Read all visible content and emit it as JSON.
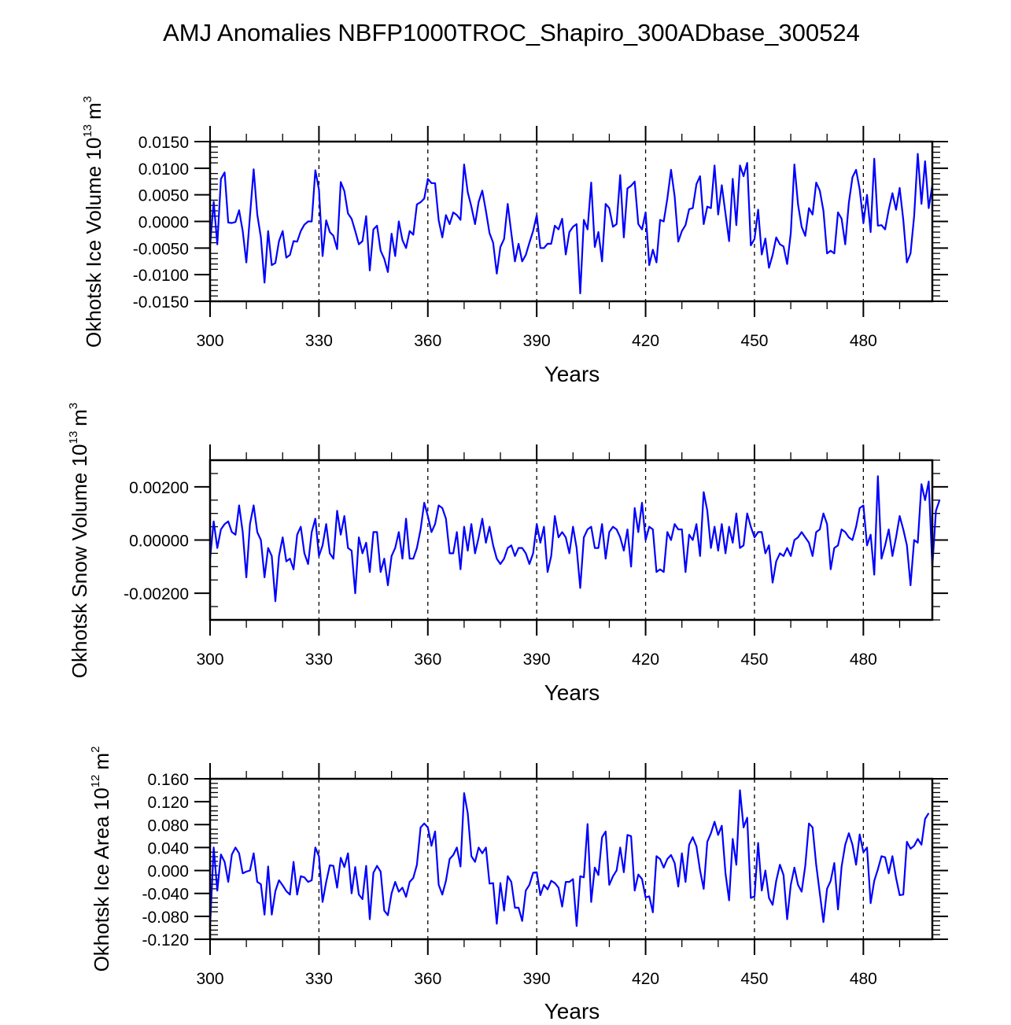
{
  "figure_title": "AMJ Anomalies NBFP1000TROC_Shapiro_300ADbase_300524",
  "chart_data": [
    {
      "type": "line",
      "title": "AMJ Anomalies NBFP1000TROC_Shapiro_300ADbase_300524",
      "ylabel": "Okhotsk Ice Volume 10^13 m^3",
      "ylabel_main": "Okhotsk Ice Volume 10",
      "ylabel_exp": "13",
      "ylabel_unit": "m",
      "ylabel_unit_exp": "3",
      "xlabel": "Years",
      "xlim": [
        300,
        499
      ],
      "ylim": [
        -0.015,
        0.015
      ],
      "xticks": [
        300,
        330,
        360,
        390,
        420,
        450,
        480
      ],
      "xtick_labels": [
        "300",
        "330",
        "360",
        "390",
        "420",
        "450",
        "480"
      ],
      "yticks": [
        0.015,
        0.01,
        0.005,
        0.0,
        -0.005,
        -0.01,
        -0.015
      ],
      "ytick_labels": [
        "0.0150",
        "0.0100",
        "0.0050",
        "0.0000",
        "-0.0050",
        "-0.0100",
        "-0.0150"
      ],
      "ytick_minor_step": 0.001,
      "grid": "dashed vertical at major x ticks",
      "line_color": "#0000ff",
      "x_start": 300,
      "values": [
        -0.0045,
        0.0037,
        -0.0043,
        0.008,
        0.0092,
        -0.0002,
        -0.0003,
        -0.0001,
        0.0021,
        -0.0018,
        -0.0077,
        0.001,
        0.0098,
        0.0013,
        -0.003,
        -0.0115,
        -0.0018,
        -0.0082,
        -0.0078,
        -0.0037,
        -0.0018,
        -0.0068,
        -0.0063,
        -0.0037,
        -0.0038,
        -0.0018,
        -0.0006,
        0.0,
        0.0,
        0.0096,
        0.006,
        -0.0065,
        0.0002,
        -0.002,
        -0.0027,
        -0.0052,
        0.0074,
        0.0057,
        0.0015,
        0.0005,
        -0.0018,
        -0.0043,
        -0.0037,
        0.001,
        -0.0092,
        -0.0015,
        -0.0008,
        -0.0055,
        -0.007,
        -0.0095,
        -0.0023,
        -0.0065,
        0.0,
        -0.0035,
        -0.005,
        -0.0018,
        -0.0025,
        0.0032,
        0.0036,
        0.0043,
        0.008,
        0.0072,
        0.0072,
        0.0002,
        -0.003,
        0.0012,
        -0.0005,
        0.0017,
        0.0012,
        0.0003,
        0.0107,
        0.0055,
        0.0028,
        -0.0005,
        0.0037,
        0.0058,
        0.002,
        -0.0022,
        -0.004,
        -0.0098,
        -0.0048,
        -0.0033,
        0.0033,
        -0.0022,
        -0.0075,
        -0.0042,
        -0.0075,
        -0.0063,
        -0.004,
        -0.0018,
        0.0012,
        -0.005,
        -0.005,
        -0.0042,
        -0.0042,
        -0.0008,
        -0.0015,
        0.0005,
        -0.0062,
        -0.002,
        -0.001,
        -0.0005,
        -0.0135,
        0.0003,
        -0.0015,
        0.0073,
        -0.0048,
        -0.002,
        -0.0075,
        0.0033,
        0.0025,
        -0.001,
        -0.0005,
        0.0087,
        -0.003,
        0.0062,
        0.0067,
        0.0075,
        -0.0005,
        -0.0015,
        0.0017,
        -0.0082,
        -0.0053,
        -0.0077,
        0.0003,
        0.0,
        0.0043,
        0.0097,
        0.0047,
        -0.0038,
        -0.0018,
        -0.0007,
        0.0023,
        0.0025,
        0.007,
        0.0085,
        -0.0005,
        0.0028,
        0.0025,
        0.0105,
        0.0013,
        0.0068,
        0.0015,
        -0.0037,
        0.008,
        -0.0007,
        0.0105,
        0.0085,
        0.011,
        -0.0045,
        -0.0033,
        0.0022,
        -0.0062,
        -0.0032,
        -0.0087,
        -0.0063,
        -0.003,
        -0.0043,
        -0.0047,
        -0.008,
        -0.0022,
        0.0107,
        0.0032,
        -0.001,
        -0.0027,
        0.0025,
        0.0013,
        0.0073,
        0.0058,
        0.002,
        -0.006,
        -0.0055,
        -0.006,
        0.0017,
        0.0005,
        -0.0043,
        0.0035,
        0.0083,
        0.0097,
        0.006,
        -0.0003,
        0.005,
        -0.002,
        0.0118,
        -0.0008,
        -0.0007,
        -0.0015,
        0.0022,
        0.0053,
        0.0022,
        0.0063,
        0.0003,
        -0.0077,
        -0.006,
        0.001,
        0.0127,
        0.0033,
        0.0113,
        0.0025,
        0.0068
      ]
    },
    {
      "type": "line",
      "ylabel": "Okhotsk Snow Volume 10^13 m^3",
      "ylabel_main": "Okhotsk Snow Volume 10",
      "ylabel_exp": "13",
      "ylabel_unit": "m",
      "ylabel_unit_exp": "3",
      "xlabel": "Years",
      "xlim": [
        300,
        499
      ],
      "ylim": [
        -0.003,
        0.003
      ],
      "xticks": [
        300,
        330,
        360,
        390,
        420,
        450,
        480
      ],
      "xtick_labels": [
        "300",
        "330",
        "360",
        "390",
        "420",
        "450",
        "480"
      ],
      "yticks": [
        0.002,
        0.0,
        -0.002
      ],
      "ytick_labels": [
        "0.00200",
        "0.00000",
        "-0.00200"
      ],
      "ytick_minor_step": 0.0005,
      "grid": "dashed vertical at major x ticks",
      "line_color": "#0000ff",
      "x_start": 300,
      "values": [
        -0.0007,
        0.0007,
        -0.0003,
        0.0004,
        0.0006,
        0.0007,
        0.0003,
        0.0002,
        0.0013,
        0.0003,
        -0.0014,
        0.0006,
        0.0013,
        0.0003,
        -0.0,
        -0.0014,
        -0.0003,
        -0.0006,
        -0.0023,
        -0.0006,
        0.0001,
        -0.0008,
        -0.0007,
        -0.0011,
        0.0002,
        0.0005,
        -0.0005,
        -0.0009,
        0.0003,
        0.0008,
        -0.0006,
        -0.0002,
        0.0006,
        -0.0005,
        -0.0007,
        0.0011,
        0.0002,
        0.0009,
        -0.0003,
        -0.0004,
        -0.002,
        0.0001,
        -0.0005,
        -0.0001,
        -0.0012,
        0.0003,
        0.0003,
        -0.0012,
        -0.0007,
        -0.0017,
        -0.0006,
        -0.0003,
        0.0003,
        -0.0007,
        0.0008,
        -0.0007,
        -0.0007,
        -0.0003,
        0.0004,
        0.0014,
        0.0009,
        0.0003,
        0.0006,
        0.0013,
        0.0012,
        0.0008,
        -0.0005,
        -0.0005,
        0.0003,
        -0.0011,
        0.0005,
        -0.0004,
        0.0006,
        -0.0005,
        0.0001,
        0.0008,
        -0.0001,
        0.0005,
        -0.0002,
        -0.0007,
        -0.0009,
        -0.0007,
        -0.0003,
        -0.0002,
        -0.0006,
        -0.0003,
        -0.0003,
        -0.0005,
        -0.0009,
        -0.0005,
        0.0006,
        -0.0001,
        0.0005,
        -0.0012,
        -0.0006,
        0.0009,
        0.0001,
        0.0003,
        0.0001,
        -0.0005,
        0.0005,
        -0.0003,
        -0.0018,
        0.0001,
        0.0004,
        0.0005,
        -0.0003,
        -0.0003,
        0.0006,
        -0.0007,
        0.0003,
        0.0005,
        0.0004,
        0.0001,
        -0.0004,
        0.0004,
        -0.001,
        0.0012,
        0.0003,
        0.0014,
        0.0,
        0.0005,
        0.0004,
        -0.0012,
        -0.0011,
        -0.0012,
        0.0003,
        0.0,
        0.0006,
        0.0004,
        0.0004,
        -0.0012,
        0.0002,
        0.0,
        0.0006,
        -0.0006,
        0.0018,
        0.0011,
        -0.0003,
        0.0005,
        -0.0004,
        0.0006,
        -0.0005,
        0.0005,
        -0.0001,
        0.001,
        -0.0003,
        -0.0002,
        0.001,
        0.0005,
        0.0001,
        0.0003,
        0.0003,
        -0.0005,
        -0.0002,
        -0.0016,
        -0.0008,
        -0.0005,
        -0.0006,
        -0.0003,
        -0.0006,
        0.0,
        0.0001,
        0.0003,
        0.0001,
        -0.0001,
        -0.0006,
        0.0003,
        0.0004,
        0.001,
        0.0006,
        -0.0011,
        -0.0003,
        -0.0002,
        0.0004,
        0.0003,
        0.0001,
        0.0,
        0.0005,
        0.0012,
        0.0013,
        -0.0002,
        0.0002,
        -0.0013,
        0.0024,
        -0.0007,
        -0.0002,
        0.0004,
        -0.0006,
        0.0001,
        0.0009,
        0.0004,
        -0.0002,
        -0.0017,
        0.0,
        -0.0001,
        0.0021,
        0.0015,
        0.0022,
        -0.001,
        0.0011,
        0.0015
      ]
    },
    {
      "type": "line",
      "ylabel": "Okhotsk Ice Area 10^12 m^2",
      "ylabel_main": "Okhotsk Ice Area 10",
      "ylabel_exp": "12",
      "ylabel_unit": "m",
      "ylabel_unit_exp": "2",
      "xlabel": "Years",
      "xlim": [
        300,
        499
      ],
      "ylim": [
        -0.12,
        0.16
      ],
      "xticks": [
        300,
        330,
        360,
        390,
        420,
        450,
        480
      ],
      "xtick_labels": [
        "300",
        "330",
        "360",
        "390",
        "420",
        "450",
        "480"
      ],
      "yticks": [
        0.16,
        0.12,
        0.08,
        0.04,
        0.0,
        -0.04,
        -0.08,
        -0.12
      ],
      "ytick_labels": [
        "0.160",
        "0.120",
        "0.080",
        "0.040",
        "0.000",
        "-0.040",
        "-0.080",
        "-0.120"
      ],
      "ytick_minor_step": 0.008,
      "grid": "dashed vertical at major x ticks",
      "line_color": "#0000ff",
      "x_start": 300,
      "values": [
        -0.098,
        0.04,
        -0.035,
        0.028,
        0.015,
        -0.02,
        0.028,
        0.04,
        0.03,
        -0.005,
        -0.002,
        0.0,
        0.03,
        -0.02,
        -0.024,
        -0.077,
        0.007,
        -0.077,
        -0.036,
        -0.017,
        -0.026,
        -0.036,
        -0.042,
        0.015,
        -0.042,
        -0.01,
        -0.012,
        -0.02,
        -0.017,
        0.04,
        0.025,
        -0.055,
        -0.02,
        0.009,
        0.008,
        -0.03,
        0.022,
        0.006,
        0.03,
        -0.04,
        0.006,
        -0.042,
        -0.05,
        0.008,
        -0.085,
        -0.004,
        0.008,
        -0.002,
        -0.07,
        -0.078,
        -0.04,
        -0.02,
        -0.037,
        -0.03,
        -0.046,
        -0.02,
        -0.013,
        0.01,
        0.075,
        0.082,
        0.075,
        0.043,
        0.068,
        -0.025,
        -0.042,
        -0.018,
        0.02,
        0.027,
        0.04,
        0.007,
        0.135,
        0.1,
        0.025,
        0.015,
        0.04,
        0.03,
        0.04,
        -0.023,
        -0.022,
        -0.093,
        -0.022,
        -0.07,
        -0.01,
        -0.02,
        -0.065,
        -0.065,
        -0.088,
        -0.035,
        -0.025,
        -0.004,
        -0.003,
        -0.043,
        -0.025,
        -0.033,
        -0.018,
        -0.022,
        -0.03,
        -0.063,
        -0.02,
        -0.02,
        -0.015,
        -0.097,
        -0.01,
        -0.012,
        0.081,
        -0.055,
        0.005,
        -0.008,
        0.058,
        0.068,
        -0.025,
        -0.01,
        0.0,
        0.04,
        -0.003,
        0.062,
        0.06,
        -0.035,
        -0.007,
        -0.015,
        -0.047,
        -0.045,
        -0.073,
        0.025,
        0.02,
        0.005,
        0.02,
        0.027,
        0.013,
        -0.028,
        0.03,
        -0.02,
        0.045,
        0.058,
        0.042,
        0.0,
        -0.032,
        0.05,
        0.065,
        0.085,
        0.062,
        0.078,
        -0.005,
        -0.052,
        0.055,
        0.01,
        0.14,
        0.075,
        0.092,
        -0.048,
        -0.045,
        0.048,
        -0.035,
        0.0,
        -0.048,
        -0.06,
        -0.018,
        0.01,
        -0.008,
        -0.085,
        -0.025,
        0.005,
        -0.025,
        -0.037,
        0.008,
        0.082,
        0.075,
        0.01,
        -0.04,
        -0.09,
        -0.032,
        -0.018,
        0.013,
        -0.068,
        0.007,
        0.045,
        0.065,
        0.045,
        0.01,
        0.063,
        0.032,
        0.04,
        -0.057,
        -0.018,
        0.002,
        0.025,
        0.023,
        -0.005,
        0.025,
        -0.013,
        -0.043,
        -0.042,
        0.05,
        0.038,
        0.043,
        0.055,
        0.045,
        0.09,
        0.1
      ]
    }
  ]
}
